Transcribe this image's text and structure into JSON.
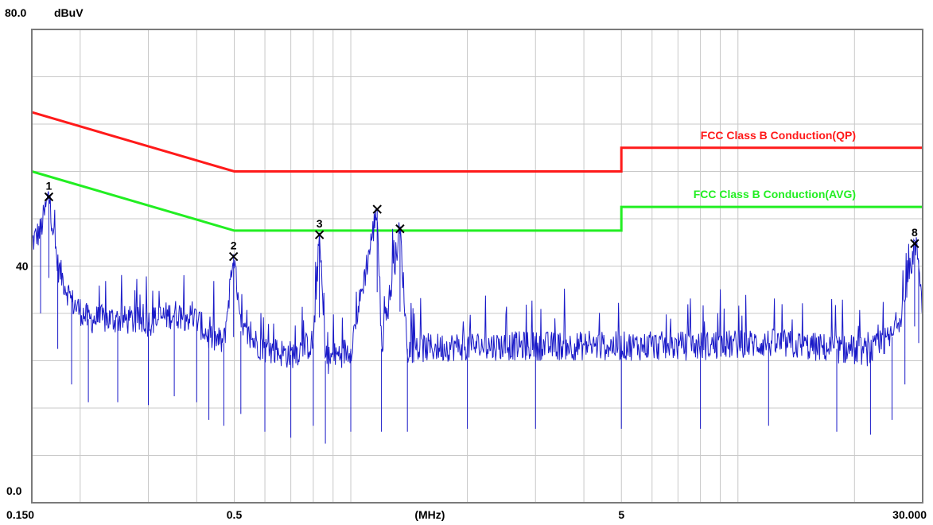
{
  "chart_data": {
    "type": "line",
    "title": "",
    "ylabel": "dBuV",
    "xlabel": "(MHz)",
    "y_top_label": "80.0",
    "y_mid_label": "40",
    "y_bottom_label": "0.0",
    "ylim": [
      0,
      80
    ],
    "xlim": [
      0.15,
      30
    ],
    "x_scale": "log",
    "x_tick_labels": [
      {
        "value": 0.15,
        "label": "0.150"
      },
      {
        "value": 0.5,
        "label": "0.5"
      },
      {
        "value": 5,
        "label": "5"
      },
      {
        "value": 30,
        "label": "30.000"
      }
    ],
    "x_unit_label_value": 1.6,
    "grid": true,
    "x_gridlines": [
      0.2,
      0.3,
      0.4,
      0.5,
      0.6,
      0.7,
      0.8,
      0.9,
      1,
      2,
      3,
      4,
      5,
      6,
      7,
      8,
      9,
      10,
      20,
      30
    ],
    "y_gridlines": [
      8,
      16,
      24,
      32,
      40,
      48,
      56,
      64,
      72
    ],
    "limit_lines": [
      {
        "name": "FCC Class B Conduction(QP)",
        "color": "#ff1a1a",
        "points": [
          [
            0.15,
            66
          ],
          [
            0.5,
            56
          ],
          [
            5,
            56
          ],
          [
            5,
            60
          ],
          [
            30,
            60
          ]
        ]
      },
      {
        "name": "FCC Class B Conduction(AVG)",
        "color": "#22ee22",
        "points": [
          [
            0.15,
            56
          ],
          [
            0.5,
            46
          ],
          [
            5,
            46
          ],
          [
            5,
            50
          ],
          [
            30,
            50
          ]
        ]
      }
    ],
    "markers": [
      {
        "label": "1",
        "x": 0.166,
        "y": 51.7
      },
      {
        "label": "2",
        "x": 0.498,
        "y": 41.6
      },
      {
        "label": "3",
        "x": 0.83,
        "y": 45.3
      },
      {
        "label": "",
        "x": 1.17,
        "y": 49.6
      },
      {
        "label": "",
        "x": 1.34,
        "y": 46.3
      },
      {
        "label": "8",
        "x": 28.6,
        "y": 43.8
      }
    ],
    "trace": {
      "name": "",
      "color": "#1a1ac8",
      "points": [
        [
          0.15,
          44
        ],
        [
          0.158,
          46
        ],
        [
          0.166,
          52
        ],
        [
          0.175,
          40
        ],
        [
          0.19,
          34
        ],
        [
          0.21,
          31
        ],
        [
          0.25,
          31
        ],
        [
          0.3,
          30.5
        ],
        [
          0.35,
          32
        ],
        [
          0.4,
          31
        ],
        [
          0.43,
          28
        ],
        [
          0.47,
          27
        ],
        [
          0.498,
          42
        ],
        [
          0.52,
          29
        ],
        [
          0.6,
          26
        ],
        [
          0.7,
          25
        ],
        [
          0.8,
          27
        ],
        [
          0.83,
          45.3
        ],
        [
          0.86,
          24
        ],
        [
          1.0,
          26
        ],
        [
          1.17,
          49.6
        ],
        [
          1.2,
          26
        ],
        [
          1.34,
          46.3
        ],
        [
          1.4,
          26
        ],
        [
          2.0,
          26.5
        ],
        [
          3.0,
          26.5
        ],
        [
          5.0,
          26.5
        ],
        [
          8.0,
          26.5
        ],
        [
          12.0,
          27
        ],
        [
          18.0,
          26
        ],
        [
          22.0,
          25.5
        ],
        [
          25.0,
          28
        ],
        [
          27.0,
          34
        ],
        [
          28.6,
          43.8
        ],
        [
          29.3,
          41
        ],
        [
          30.0,
          33
        ]
      ]
    }
  }
}
